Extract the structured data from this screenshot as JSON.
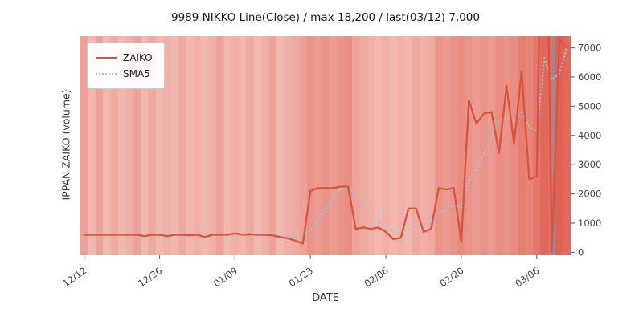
{
  "chart_data": {
    "type": "line",
    "title": "9989 NIKKO Line(Close) / max 18,200 / last(03/12) 7,000",
    "xlabel": "DATE",
    "ylabel": "IPPAN ZAIKO (volume)",
    "max_value": 18200,
    "last": {
      "date": "03/12",
      "value": 7000
    },
    "x_tick_labels": [
      "12/12",
      "12/26",
      "01/09",
      "01/23",
      "02/06",
      "02/20",
      "03/06"
    ],
    "x_tick_indices": [
      0,
      10,
      20,
      30,
      40,
      50,
      60
    ],
    "y_ticks": [
      0,
      1000,
      2000,
      3000,
      4000,
      5000,
      6000,
      7000
    ],
    "ylim": [
      -100,
      7400
    ],
    "legend_position": "upper-left",
    "grid": false,
    "series": [
      {
        "name": "ZAIKO",
        "color": "#d9533b",
        "style": "solid",
        "values": [
          600,
          600,
          600,
          600,
          600,
          600,
          600,
          600,
          550,
          600,
          600,
          550,
          600,
          600,
          580,
          600,
          520,
          600,
          600,
          600,
          650,
          600,
          620,
          600,
          600,
          580,
          520,
          480,
          400,
          300,
          2100,
          2200,
          2200,
          2200,
          2250,
          2250,
          800,
          850,
          800,
          850,
          700,
          450,
          500,
          1500,
          1500,
          700,
          800,
          2200,
          2150,
          2200,
          350,
          5200,
          4400,
          4750,
          4800,
          3400,
          5700,
          3700,
          6200,
          2500,
          2600,
          18200,
          0,
          7300,
          7000
        ]
      },
      {
        "name": "SMA5",
        "color": "#9fc3de",
        "style": "dotted",
        "values": [
          null,
          null,
          null,
          null,
          600,
          600,
          600,
          600,
          590,
          590,
          590,
          580,
          580,
          590,
          586,
          586,
          580,
          580,
          580,
          584,
          594,
          610,
          614,
          624,
          614,
          600,
          584,
          556,
          516,
          456,
          760,
          1096,
          1440,
          1800,
          2190,
          2220,
          1940,
          1670,
          1390,
          1110,
          800,
          730,
          660,
          800,
          930,
          930,
          1000,
          1340,
          1470,
          1610,
          1540,
          2420,
          2860,
          3380,
          3900,
          4510,
          4610,
          4470,
          4760,
          4300,
          4140,
          6640,
          5900,
          6120,
          7020
        ]
      }
    ],
    "background": {
      "light_color": "#fae3de",
      "dark_color": "#dd5244",
      "intensity": [
        0.45,
        0.3,
        0.45,
        0.3,
        0.4,
        0.3,
        0.35,
        0.45,
        0.3,
        0.4,
        0.3,
        0.35,
        0.3,
        0.4,
        0.3,
        0.35,
        0.3,
        0.35,
        0.45,
        0.3,
        0.35,
        0.3,
        0.4,
        0.3,
        0.35,
        0.45,
        0.3,
        0.35,
        0.4,
        0.45,
        0.55,
        0.5,
        0.55,
        0.5,
        0.55,
        0.6,
        0.45,
        0.4,
        0.35,
        0.3,
        0.35,
        0.3,
        0.35,
        0.3,
        0.4,
        0.35,
        0.4,
        0.55,
        0.5,
        0.55,
        0.6,
        0.55,
        0.5,
        0.55,
        0.5,
        0.6,
        0.55,
        0.6,
        0.7,
        0.65,
        0.75,
        0.85,
        0.8,
        0.9,
        0.85
      ]
    },
    "marker_line": {
      "x_index": 62.3,
      "color": "#8195a3"
    }
  },
  "legend": {
    "items": [
      {
        "label": "ZAIKO"
      },
      {
        "label": "SMA5"
      }
    ]
  }
}
